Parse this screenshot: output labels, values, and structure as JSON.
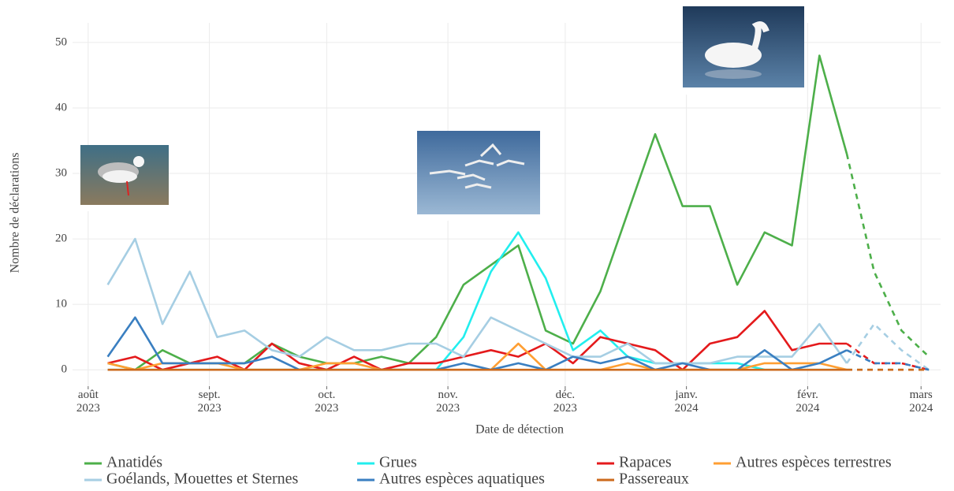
{
  "chart_data": {
    "type": "line",
    "x_label": "Date de détection",
    "y_label": "Nombre de déclarations",
    "x": [
      5,
      12,
      19,
      26,
      33,
      40,
      47,
      54,
      61,
      68,
      75,
      82,
      89,
      96,
      103,
      110,
      117,
      124,
      131,
      138,
      145,
      152,
      159,
      166,
      173,
      180,
      187,
      194,
      201,
      208,
      215
    ],
    "xlim": [
      -4,
      218
    ],
    "xticks": [
      {
        "value": 0,
        "label": "août\n2023"
      },
      {
        "value": 31,
        "label": "sept.\n2023"
      },
      {
        "value": 61,
        "label": "oct.\n2023"
      },
      {
        "value": 92,
        "label": "nov.\n2023"
      },
      {
        "value": 122,
        "label": "déc.\n2023"
      },
      {
        "value": 153,
        "label": "janv.\n2024"
      },
      {
        "value": 184,
        "label": "févr.\n2024"
      },
      {
        "value": 213,
        "label": "mars\n2024"
      }
    ],
    "ylim": [
      -2.5,
      53
    ],
    "yticks": [
      0,
      10,
      20,
      30,
      40,
      50
    ],
    "grid": true,
    "dashed_from_x": 194,
    "legend": "bottom",
    "series": [
      {
        "name": "Anatidés",
        "color": "#4daf4a",
        "values": [
          1,
          0,
          3,
          1,
          1,
          1,
          4,
          2,
          1,
          1,
          2,
          1,
          5,
          13,
          16,
          19,
          6,
          4,
          12,
          24,
          36,
          25,
          25,
          13,
          21,
          19,
          48,
          33,
          15,
          6,
          2
        ]
      },
      {
        "name": "Grues",
        "color": "#22eeee",
        "values": [
          0,
          0,
          0,
          0,
          0,
          0,
          0,
          0,
          0,
          0,
          0,
          0,
          0,
          5,
          15,
          21,
          14,
          3,
          6,
          2,
          1,
          1,
          1,
          1,
          0,
          0,
          0,
          0,
          0,
          0,
          0
        ]
      },
      {
        "name": "Rapaces",
        "color": "#e41a1c",
        "values": [
          1,
          2,
          0,
          1,
          2,
          0,
          4,
          1,
          0,
          2,
          0,
          1,
          1,
          2,
          3,
          2,
          4,
          1,
          5,
          4,
          3,
          0,
          4,
          5,
          9,
          3,
          4,
          4,
          1,
          1,
          0
        ]
      },
      {
        "name": "Autres espèces terrestres",
        "color": "#ff9f33",
        "values": [
          1,
          0,
          1,
          1,
          1,
          0,
          0,
          0,
          1,
          1,
          0,
          0,
          0,
          0,
          0,
          4,
          0,
          0,
          0,
          1,
          0,
          0,
          0,
          0,
          1,
          1,
          1,
          0,
          0,
          0,
          0
        ]
      },
      {
        "name": "Goélands, Mouettes et Sternes",
        "color": "#a6cee3",
        "values": [
          13,
          20,
          7,
          15,
          5,
          6,
          3,
          2,
          5,
          3,
          3,
          4,
          4,
          2,
          8,
          6,
          4,
          2,
          2,
          4,
          1,
          1,
          1,
          2,
          2,
          2,
          7,
          1,
          7,
          3,
          0
        ]
      },
      {
        "name": "Autres espèces aquatiques",
        "color": "#3a7fc1",
        "values": [
          2,
          8,
          1,
          1,
          1,
          1,
          2,
          0,
          0,
          0,
          0,
          0,
          0,
          1,
          0,
          1,
          0,
          2,
          1,
          2,
          0,
          1,
          0,
          0,
          3,
          0,
          1,
          3,
          1,
          1,
          0
        ]
      },
      {
        "name": "Passereaux",
        "color": "#cc6a1c",
        "values": [
          0,
          0,
          0,
          0,
          0,
          0,
          0,
          0,
          0,
          0,
          0,
          0,
          0,
          0,
          0,
          0,
          0,
          0,
          0,
          0,
          0,
          0,
          0,
          0,
          0,
          0,
          0,
          0,
          0,
          0,
          0
        ]
      }
    ]
  }
}
